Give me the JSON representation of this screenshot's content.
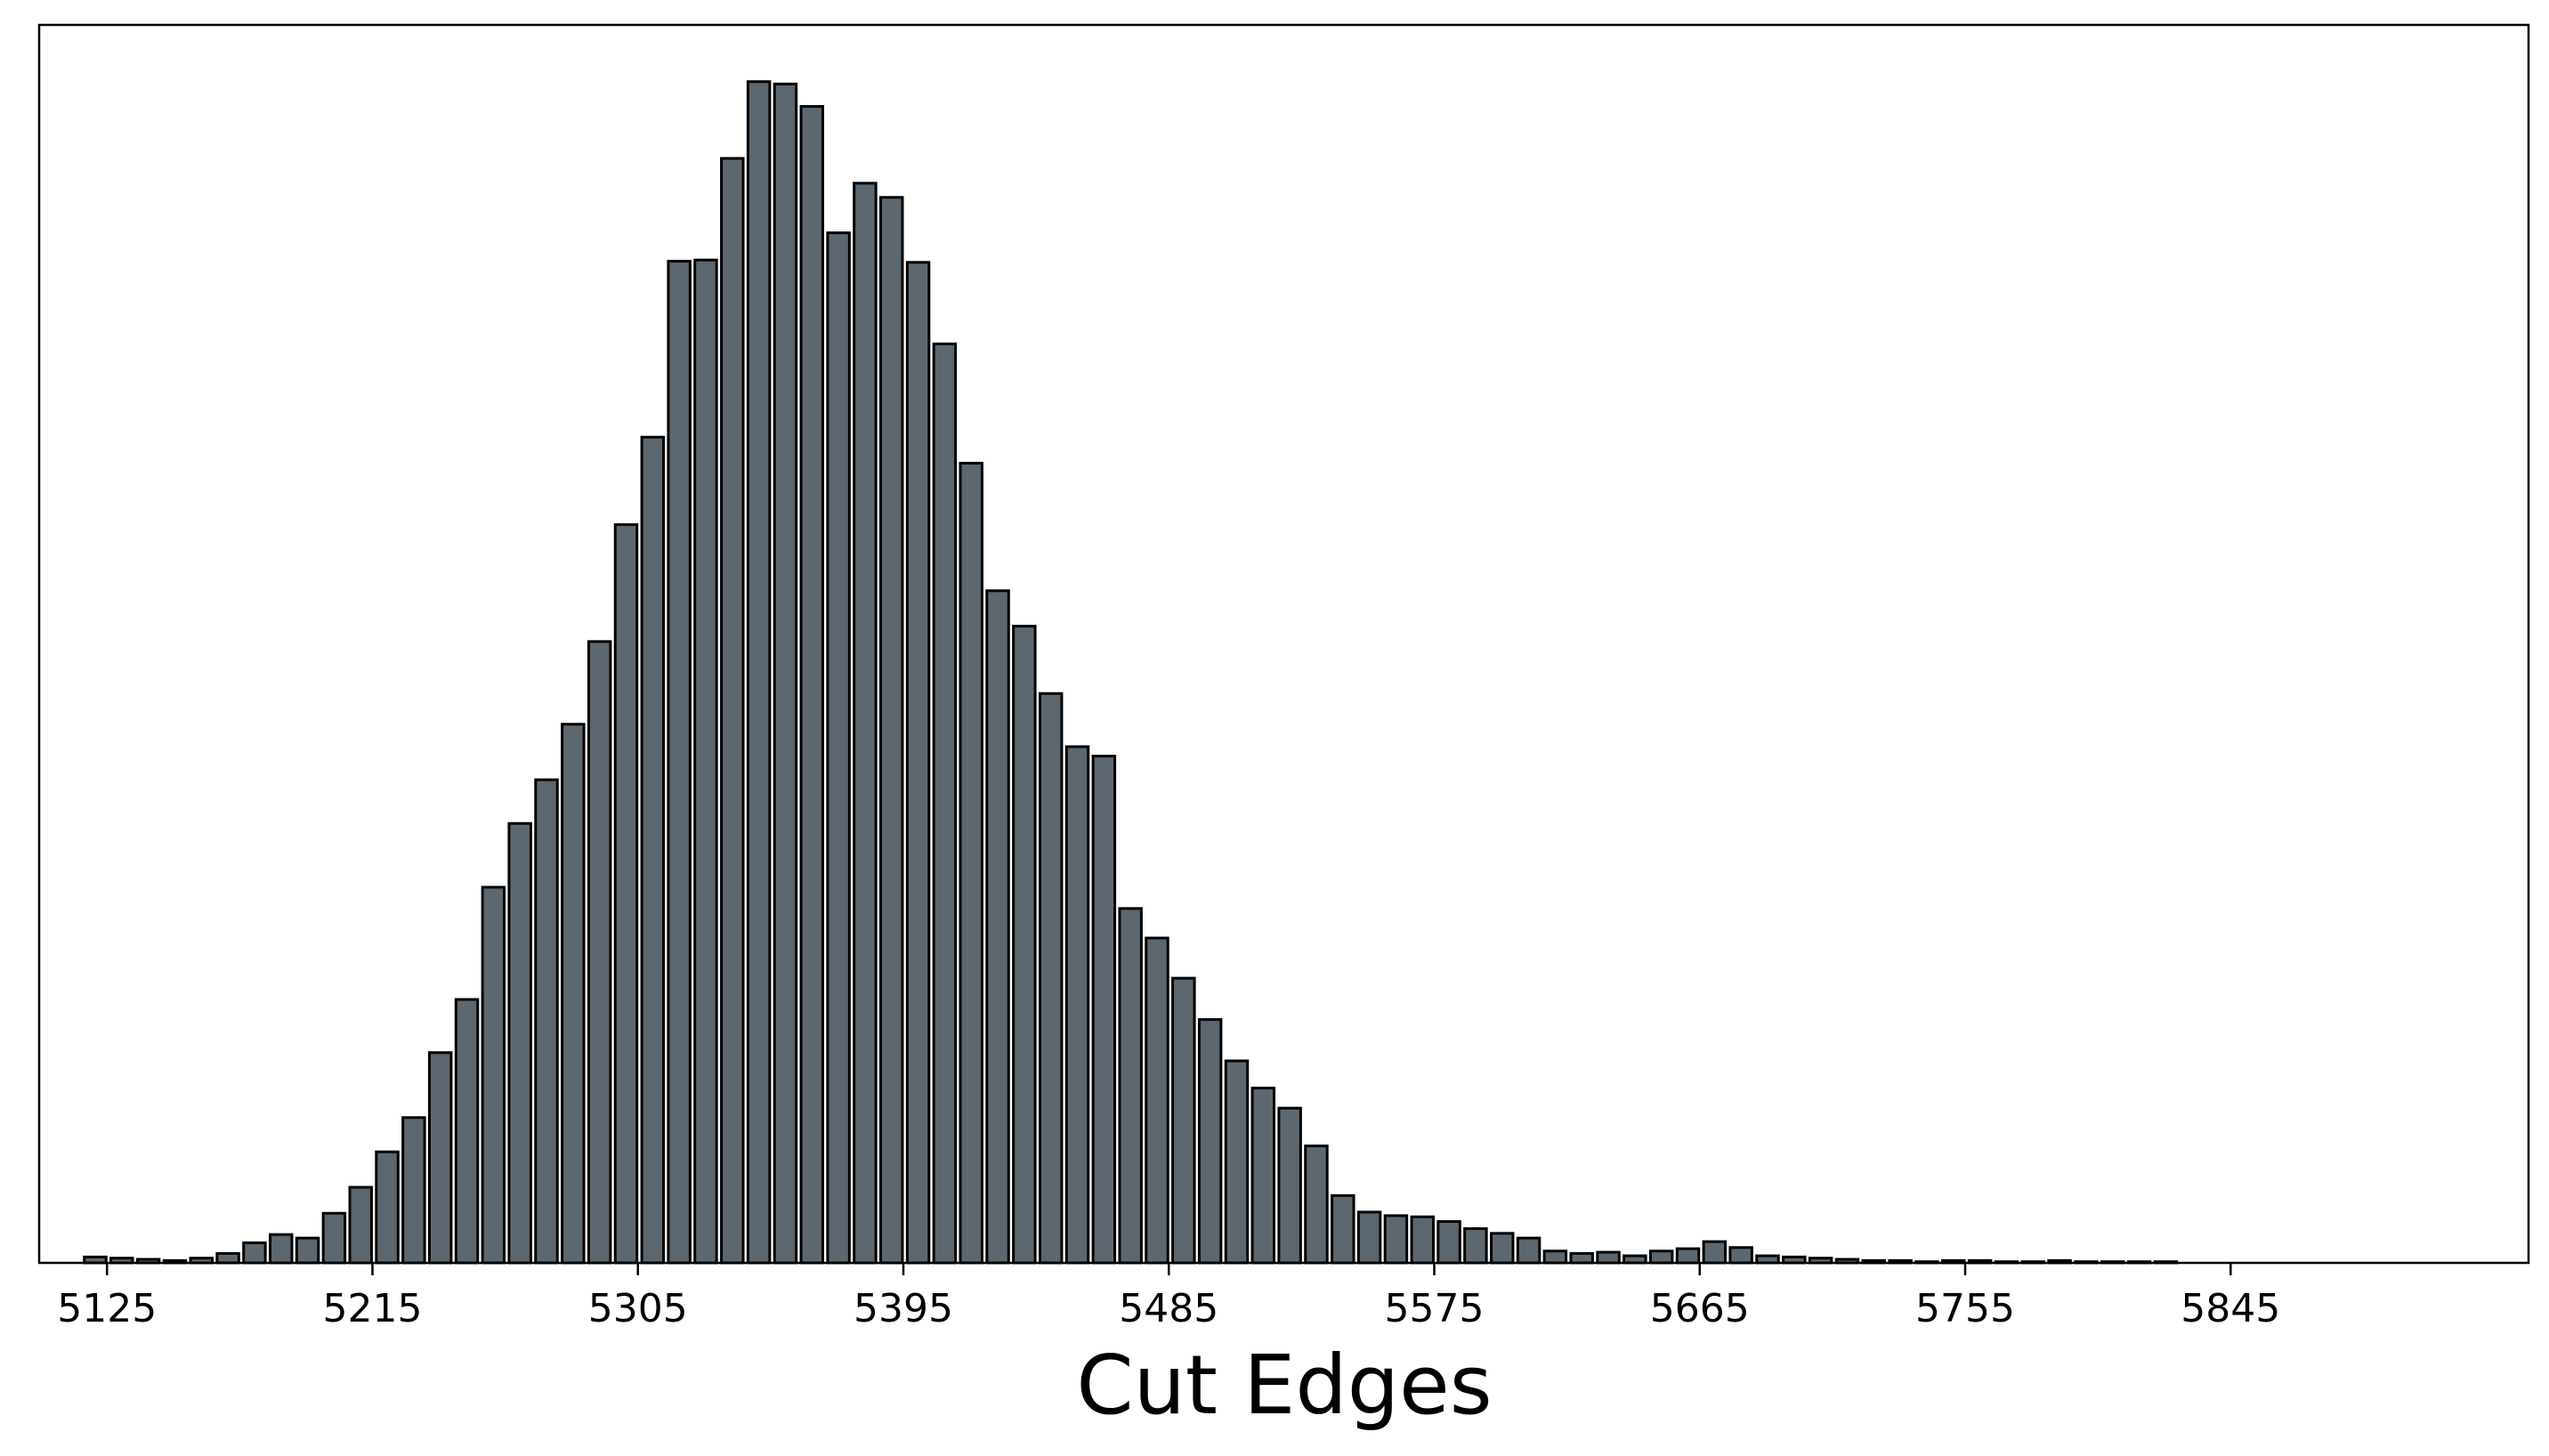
{
  "chart_data": {
    "type": "bar",
    "title": "",
    "xlabel": "Cut Edges",
    "ylabel": "",
    "bin_width": 9,
    "x_ticks": [
      5125,
      5215,
      5305,
      5395,
      5485,
      5575,
      5665,
      5755,
      5845
    ],
    "xlim": [
      5102,
      5946
    ],
    "ylim": [
      0,
      1.048
    ],
    "y_axis_visible": false,
    "grid": false,
    "legend": "none",
    "colors": {
      "bar_fill": "#5d6770",
      "bar_edge": "#000000",
      "frame": "#000000",
      "background": "#ffffff"
    },
    "x": [
      5121,
      5130,
      5139,
      5148,
      5157,
      5166,
      5175,
      5184,
      5193,
      5202,
      5211,
      5220,
      5229,
      5238,
      5247,
      5256,
      5265,
      5274,
      5283,
      5292,
      5301,
      5310,
      5319,
      5328,
      5337,
      5346,
      5355,
      5364,
      5373,
      5382,
      5391,
      5400,
      5409,
      5418,
      5427,
      5436,
      5445,
      5454,
      5463,
      5472,
      5481,
      5490,
      5499,
      5508,
      5517,
      5526,
      5535,
      5544,
      5553,
      5562,
      5571,
      5580,
      5589,
      5598,
      5607,
      5616,
      5625,
      5634,
      5643,
      5652,
      5661,
      5670,
      5679,
      5688,
      5697,
      5706,
      5715,
      5724,
      5733,
      5742,
      5751,
      5760,
      5769,
      5778,
      5787,
      5796,
      5805,
      5814,
      5823,
      5832,
      5841,
      5850,
      5859,
      5868,
      5877,
      5886,
      5895
    ],
    "values": [
      0.005,
      0.004,
      0.003,
      0.002,
      0.004,
      0.008,
      0.017,
      0.024,
      0.021,
      0.042,
      0.064,
      0.094,
      0.123,
      0.178,
      0.223,
      0.318,
      0.372,
      0.409,
      0.456,
      0.526,
      0.625,
      0.699,
      0.848,
      0.849,
      0.935,
      1.0,
      0.998,
      0.979,
      0.872,
      0.914,
      0.902,
      0.847,
      0.778,
      0.677,
      0.569,
      0.539,
      0.482,
      0.437,
      0.429,
      0.3,
      0.275,
      0.241,
      0.206,
      0.171,
      0.148,
      0.131,
      0.099,
      0.057,
      0.043,
      0.04,
      0.039,
      0.035,
      0.029,
      0.025,
      0.021,
      0.01,
      0.008,
      0.009,
      0.006,
      0.01,
      0.012,
      0.018,
      0.013,
      0.006,
      0.005,
      0.004,
      0.003,
      0.002,
      0.002,
      0.001,
      0.002,
      0.002,
      0.001,
      0.001,
      0.002,
      0.001,
      0.001,
      0.001,
      0.001,
      0.0,
      0.0,
      0.0,
      0.0,
      0.0,
      0.0,
      0.0,
      0.0
    ]
  }
}
